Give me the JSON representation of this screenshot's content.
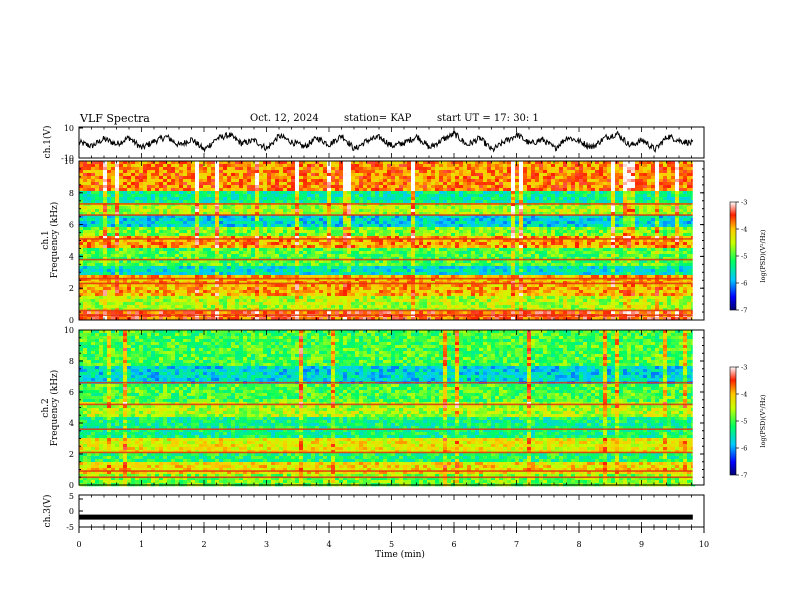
{
  "header": {
    "title": "VLF Spectra",
    "date": "Oct. 12, 2024",
    "station": "station= KAP",
    "start": "start  UT =   17: 30: 1"
  },
  "chart_data": [
    {
      "type": "line",
      "panel": "ch1-waveform",
      "ylabel": "ch.1(V)",
      "ylim": [
        -10,
        10
      ],
      "yticks": [
        "10",
        "-10"
      ],
      "xlim": [
        0,
        10
      ],
      "color": "#000000",
      "series": [
        {
          "values": [
            0.5,
            -2.2,
            2.8,
            -0.8,
            3.6,
            -3.4,
            1.2,
            4.2,
            -1.6,
            2.6,
            -4.6,
            3.0,
            5.4,
            -0.4,
            1.8,
            -3.8,
            4.8,
            0.6,
            -2.6,
            3.4,
            -1.0,
            5.0,
            -4.2,
            1.6,
            3.8,
            -2.0,
            0.2,
            4.4,
            -3.2,
            2.2,
            6.0,
            -1.4,
            3.2,
            -4.8,
            1.0,
            5.6,
            -0.6,
            2.4,
            -3.6,
            4.0,
            0.8,
            -2.8,
            3.6,
            6.2,
            -1.8,
            2.0,
            -4.4,
            4.6,
            1.4,
            -0.2
          ]
        }
      ]
    },
    {
      "type": "heatmap",
      "panel": "ch1-spectrogram",
      "ylabel": "ch.1\nFrequency (kHz)",
      "yticks": [
        "0",
        "2",
        "4",
        "6",
        "8",
        "10"
      ],
      "ylim": [
        0,
        10
      ],
      "xlim": [
        0,
        10
      ],
      "colorbar": {
        "label": "log(PSD)(V²/Hz)",
        "ticks": [
          "-3",
          "-4",
          "-5",
          "-6",
          "-7"
        ],
        "range": [
          -7,
          -3
        ]
      },
      "bands": [
        {
          "f0": 0.0,
          "f1": 0.6,
          "level": -3.6
        },
        {
          "f0": 0.6,
          "f1": 1.6,
          "level": -4.6
        },
        {
          "f0": 1.6,
          "f1": 2.8,
          "level": -4.0
        },
        {
          "f0": 2.8,
          "f1": 3.4,
          "level": -5.6
        },
        {
          "f0": 3.4,
          "f1": 4.6,
          "level": -5.0
        },
        {
          "f0": 4.6,
          "f1": 5.2,
          "level": -3.9
        },
        {
          "f0": 5.2,
          "f1": 5.8,
          "level": -4.8
        },
        {
          "f0": 5.8,
          "f1": 6.6,
          "level": -5.7
        },
        {
          "f0": 6.6,
          "f1": 7.4,
          "level": -4.6
        },
        {
          "f0": 7.4,
          "f1": 8.2,
          "level": -5.4
        },
        {
          "f0": 8.2,
          "f1": 10.0,
          "level": -3.8
        }
      ],
      "lines": [
        0.3,
        0.6,
        2.3,
        2.6,
        3.8,
        5.1,
        6.6,
        7.3
      ]
    },
    {
      "type": "heatmap",
      "panel": "ch2-spectrogram",
      "ylabel": "ch.2\nFrequency (kHz)",
      "yticks": [
        "0",
        "2",
        "4",
        "6",
        "8",
        "10"
      ],
      "ylim": [
        0,
        10
      ],
      "xlim": [
        0,
        10
      ],
      "colorbar": {
        "label": "log(PSD)(V²/Hz)",
        "ticks": [
          "-3",
          "-4",
          "-5",
          "-6",
          "-7"
        ],
        "range": [
          -7,
          -3
        ]
      },
      "bands": [
        {
          "f0": 0.0,
          "f1": 0.8,
          "level": -4.8
        },
        {
          "f0": 0.8,
          "f1": 1.4,
          "level": -4.2
        },
        {
          "f0": 1.4,
          "f1": 2.0,
          "level": -5.2
        },
        {
          "f0": 2.0,
          "f1": 3.0,
          "level": -4.3
        },
        {
          "f0": 3.0,
          "f1": 4.4,
          "level": -5.3
        },
        {
          "f0": 4.4,
          "f1": 5.4,
          "level": -4.6
        },
        {
          "f0": 5.4,
          "f1": 6.6,
          "level": -5.0
        },
        {
          "f0": 6.6,
          "f1": 7.6,
          "level": -5.7
        },
        {
          "f0": 7.6,
          "f1": 10.0,
          "level": -5.0
        }
      ],
      "lines": [
        0.5,
        0.9,
        2.1,
        3.6,
        5.2,
        6.6
      ]
    },
    {
      "type": "line",
      "panel": "ch3-waveform",
      "ylabel": "ch.3(V)",
      "ylim": [
        -5,
        5
      ],
      "yticks": [
        "5",
        "0",
        "-5"
      ],
      "xlim": [
        0,
        10
      ],
      "xticks": [
        "0",
        "1",
        "2",
        "3",
        "4",
        "5",
        "6",
        "7",
        "8",
        "9",
        "10"
      ],
      "xlabel": "Time (min)",
      "color": "#000000",
      "series": [
        {
          "values": [
            -1.9,
            -1.9
          ]
        }
      ]
    }
  ]
}
